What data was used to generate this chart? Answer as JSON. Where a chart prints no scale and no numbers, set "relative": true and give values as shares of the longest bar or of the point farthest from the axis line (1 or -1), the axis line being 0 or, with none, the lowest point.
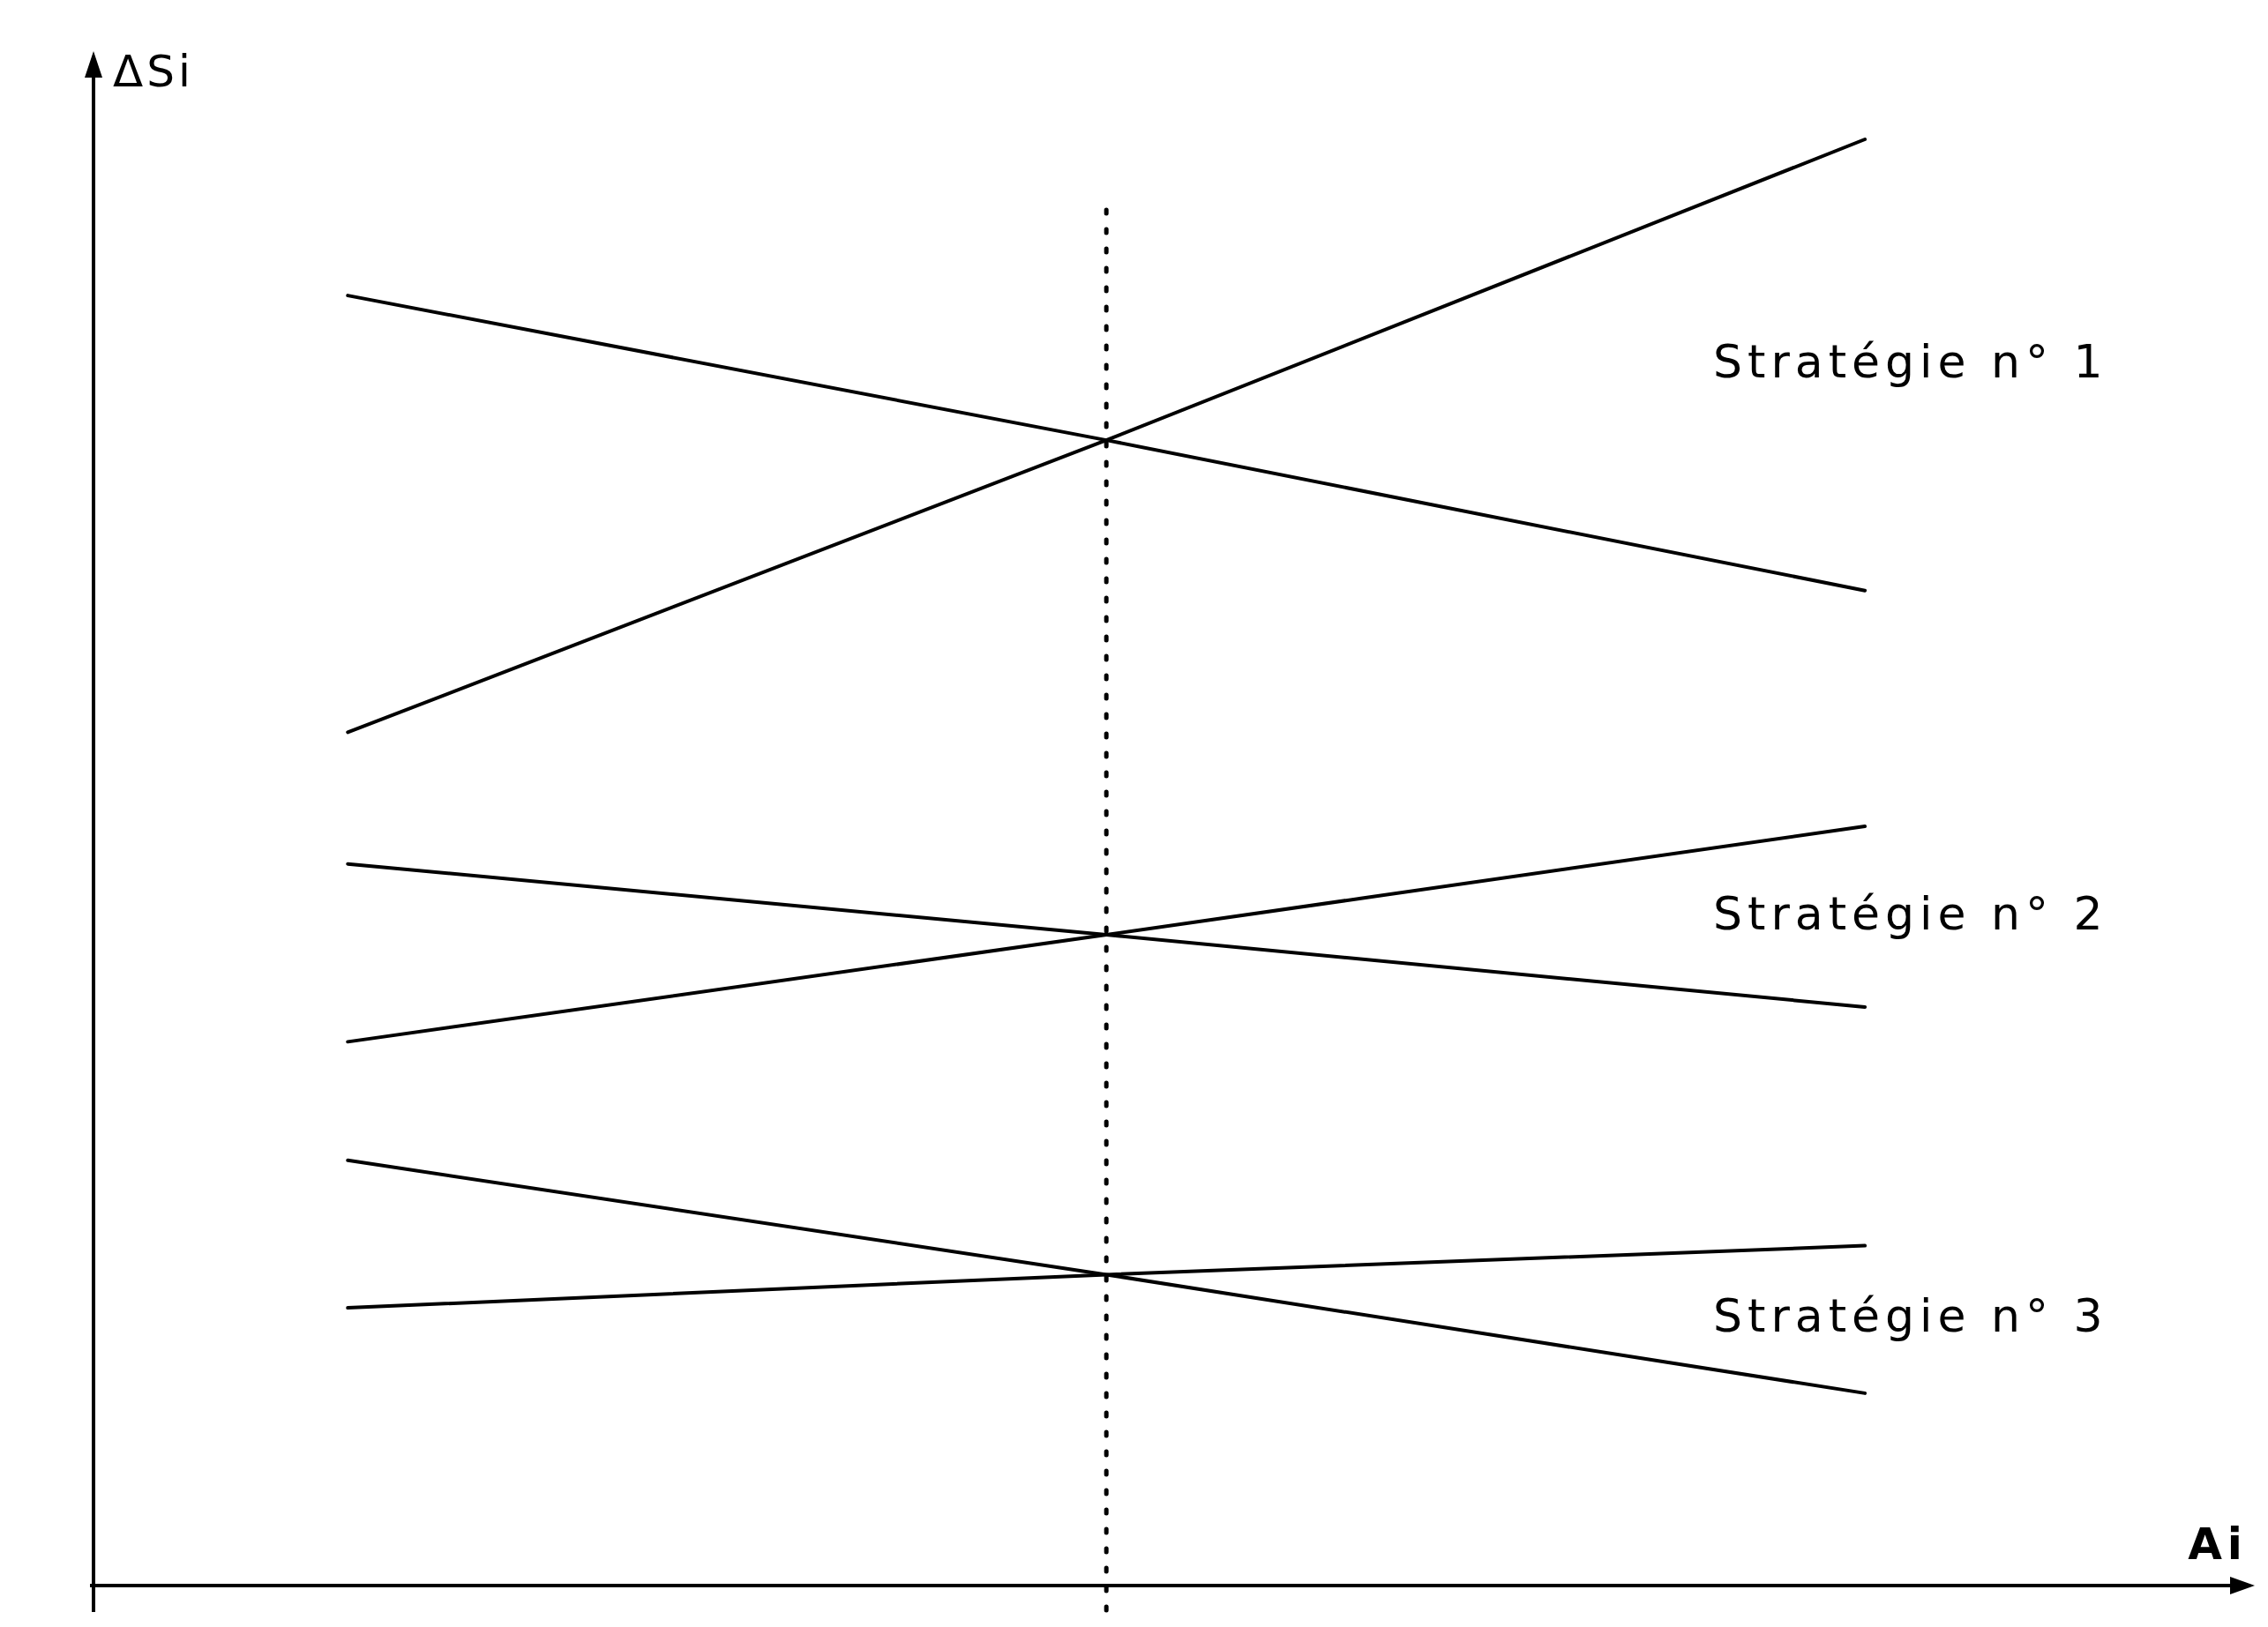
{
  "chart_data": {
    "type": "line",
    "relative": true,
    "xlabel": "Ai",
    "ylabel": "ΔSi",
    "categories": [
      null,
      null,
      null
    ],
    "series": [
      {
        "color": "#000000",
        "values": [
          0.892,
          0.792,
          0.688
        ]
      },
      {
        "color": "#000000",
        "values": [
          0.59,
          0.792,
          1.0
        ]
      },
      {
        "color": "#000000",
        "values": [
          0.499,
          0.45,
          0.4
        ]
      },
      {
        "color": "#000000",
        "values": [
          0.376,
          0.45,
          0.525
        ]
      },
      {
        "color": "#000000",
        "values": [
          0.294,
          0.215,
          0.133
        ]
      },
      {
        "color": "#000000",
        "values": [
          0.192,
          0.215,
          0.235
        ]
      }
    ],
    "annotations": [
      "Stratégie n° 1",
      "Stratégie n° 2",
      "Stratégie n° 3"
    ]
  }
}
